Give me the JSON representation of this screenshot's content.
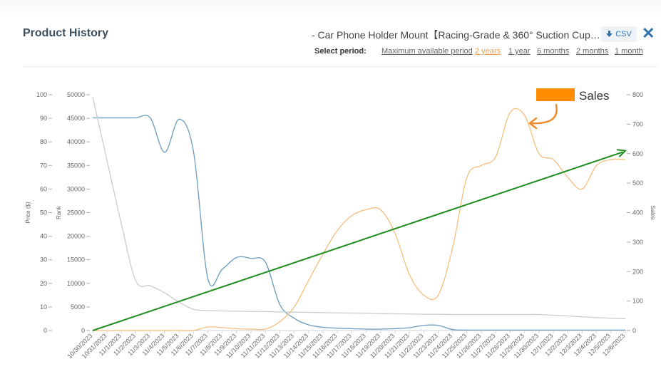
{
  "header": {
    "title": "Product History",
    "product_name": "- Car Phone Holder Mount【Racing-Grade & 360° Suction Cup…",
    "csv_label": "CSV",
    "close_icon": "close-icon"
  },
  "period": {
    "label": "Select period:",
    "options": [
      "Maximum available period",
      "2 years",
      "1 year",
      "6 months",
      "2 months",
      "1 month"
    ],
    "active": "2 years"
  },
  "chart_data": {
    "type": "line",
    "categories": [
      "10/30/2023",
      "10/31/2023",
      "11/1/2023",
      "11/2/2023",
      "11/3/2023",
      "11/4/2023",
      "11/5/2023",
      "11/6/2023",
      "11/7/2023",
      "11/8/2023",
      "11/9/2023",
      "11/10/2023",
      "11/11/2023",
      "11/12/2023",
      "11/13/2023",
      "11/14/2023",
      "11/15/2023",
      "11/16/2023",
      "11/17/2023",
      "11/18/2023",
      "11/19/2023",
      "11/20/2023",
      "11/21/2023",
      "11/22/2023",
      "11/23/2023",
      "11/24/2023",
      "11/25/2023",
      "11/26/2023",
      "11/27/2023",
      "11/28/2023",
      "11/29/2023",
      "11/30/2023",
      "12/1/2023",
      "12/2/2023",
      "12/3/2023",
      "12/4/2023",
      "12/5/2023",
      "12/6/2023"
    ],
    "axes": {
      "price": {
        "title": "Price ($)",
        "ticks": [
          0,
          10,
          20,
          30,
          40,
          50,
          60,
          70,
          80,
          90,
          100
        ],
        "range": [
          0,
          100
        ]
      },
      "rank": {
        "title": "Rank",
        "ticks": [
          0,
          5000,
          10000,
          15000,
          20000,
          25000,
          30000,
          35000,
          40000,
          45000,
          50000
        ],
        "range": [
          0,
          50000
        ]
      },
      "sales": {
        "title": "Sales",
        "ticks": [
          0,
          100,
          200,
          300,
          400,
          500,
          600,
          700,
          800
        ],
        "range": [
          0,
          800
        ]
      }
    },
    "series": [
      {
        "axis": "rank",
        "color": "#6a9bbd",
        "values": [
          45100,
          45100,
          45100,
          45100,
          45100,
          37800,
          44800,
          38000,
          11000,
          13000,
          15500,
          15300,
          14500,
          5500,
          2600,
          1200,
          700,
          500,
          400,
          300,
          300,
          400,
          600,
          1100,
          1100,
          200,
          100,
          100,
          100,
          100,
          100,
          100,
          100,
          100,
          100,
          100,
          100,
          100
        ]
      },
      {
        "axis": "price",
        "color": "#c9cdd0",
        "values": [
          99,
          72,
          45,
          21,
          19,
          16,
          12,
          9,
          8.5,
          8.3,
          8.2,
          8.1,
          8.0,
          7.9,
          7.8,
          7.7,
          7.6,
          7.5,
          7.4,
          7.3,
          7.2,
          7.1,
          7.0,
          6.9,
          6.9,
          6.8,
          6.8,
          6.8,
          6.8,
          6.8,
          6.8,
          6.8,
          6.5,
          6.2,
          5.8,
          5.5,
          5.2,
          5.0
        ]
      },
      {
        "axis": "sales",
        "color": "#f4bf7f",
        "values": [
          0,
          0,
          0,
          0,
          0,
          0,
          0,
          0,
          12,
          10,
          6,
          5,
          5,
          30,
          80,
          170,
          260,
          340,
          390,
          410,
          410,
          330,
          190,
          120,
          120,
          280,
          520,
          560,
          590,
          740,
          730,
          600,
          580,
          520,
          480,
          560,
          580,
          580
        ]
      }
    ],
    "trend": {
      "axis": "sales",
      "color": "#1e8c1e",
      "start": 0,
      "end": 610
    },
    "annotation": {
      "text": "Sales",
      "swatch_color": "#ff8c00",
      "arrow_color": "#f08a2b"
    },
    "grid": false
  }
}
